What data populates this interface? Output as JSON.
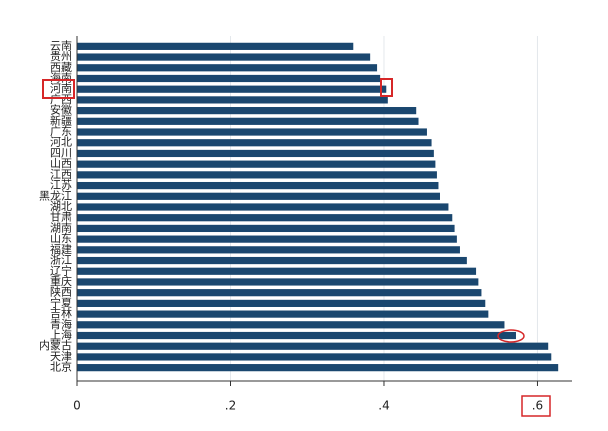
{
  "chart_data": {
    "type": "barh",
    "categories": [
      "云南",
      "贵州",
      "西藏",
      "海南",
      "河南",
      "广西",
      "安徽",
      "新疆",
      "广东",
      "河北",
      "四川",
      "山西",
      "江西",
      "江苏",
      "黑龙江",
      "湖北",
      "甘肃",
      "湖南",
      "山东",
      "福建",
      "浙江",
      "辽宁",
      "重庆",
      "陕西",
      "宁夏",
      "吉林",
      "青海",
      "上海",
      "内蒙古",
      "天津",
      "北京"
    ],
    "values": [
      0.36,
      0.382,
      0.391,
      0.395,
      0.403,
      0.405,
      0.442,
      0.445,
      0.456,
      0.462,
      0.465,
      0.467,
      0.469,
      0.471,
      0.473,
      0.484,
      0.489,
      0.492,
      0.495,
      0.499,
      0.508,
      0.52,
      0.523,
      0.527,
      0.532,
      0.536,
      0.557,
      0.572,
      0.614,
      0.618,
      0.627
    ],
    "color": "#1a476f",
    "xlim": [
      0,
      0.645
    ],
    "xticks": [
      0,
      {
        "value": 0.2,
        "label": ".2"
      },
      {
        "value": 0.4,
        "label": ".4"
      },
      {
        "value": 0.6,
        "label": ".6"
      }
    ],
    "grid": true
  }
}
